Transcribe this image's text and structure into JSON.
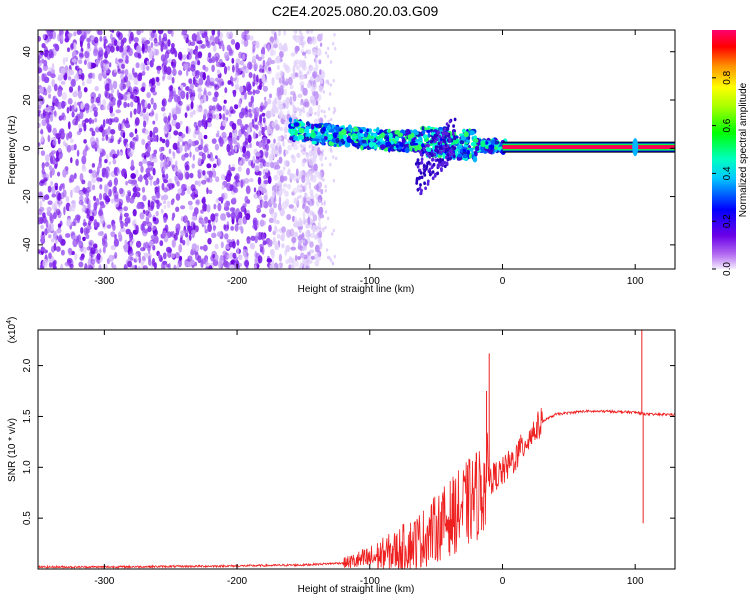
{
  "title": "C2E4.2025.080.20.03.G09",
  "chart_data": [
    {
      "type": "heatmap",
      "xlabel": "Height of straight line (km)",
      "ylabel": "Frequency (Hz)",
      "xlim": [
        -350,
        130
      ],
      "ylim": [
        -50,
        49
      ],
      "xticks": [
        -300,
        -200,
        -100,
        0,
        100
      ],
      "yticks": [
        -40,
        -20,
        0,
        20,
        40
      ],
      "colorbar": {
        "label": "Normalized spectral amplitude",
        "range": [
          0,
          1
        ],
        "ticks": [
          0.0,
          0.2,
          0.4,
          0.6,
          0.8
        ],
        "tick_labels": [
          "0.0",
          "0.2",
          "0.4",
          "0.6",
          "0.8"
        ]
      },
      "features": {
        "noise_region_x": [
          -350,
          -155
        ],
        "noise_amplitude": 0.1,
        "signal_track": [
          {
            "x": -160,
            "f": 8
          },
          {
            "x": -140,
            "f": 6
          },
          {
            "x": -120,
            "f": 5
          },
          {
            "x": -100,
            "f": 4
          },
          {
            "x": -80,
            "f": 3
          },
          {
            "x": -60,
            "f": 3
          },
          {
            "x": -40,
            "f": 2
          },
          {
            "x": -20,
            "f": 1
          },
          {
            "x": 0,
            "f": 1
          }
        ],
        "carrier_line": {
          "x_range": [
            0,
            130
          ],
          "f": 0.5,
          "amplitude": 0.95
        }
      }
    },
    {
      "type": "line",
      "xlabel": "Height of straight line (km)",
      "ylabel": "SNR (10 * v/v)",
      "y_multiplier_label": "(x10",
      "y_multiplier_exp": "4",
      "xlim": [
        -350,
        130
      ],
      "ylim": [
        0,
        2.35
      ],
      "xticks": [
        -300,
        -200,
        -100,
        0,
        100
      ],
      "yticks": [
        0.5,
        1.0,
        1.5,
        2.0
      ],
      "ytick_labels": [
        "0.5",
        "1.0",
        "1.5",
        "2.0"
      ],
      "series": [
        {
          "color": "#ee2020",
          "points": [
            [
              -350,
              0.02
            ],
            [
              -300,
              0.02
            ],
            [
              -250,
              0.025
            ],
            [
              -200,
              0.03
            ],
            [
              -150,
              0.04
            ],
            [
              -120,
              0.06
            ],
            [
              -100,
              0.1
            ],
            [
              -80,
              0.18
            ],
            [
              -60,
              0.3
            ],
            [
              -50,
              0.4
            ],
            [
              -40,
              0.5
            ],
            [
              -30,
              0.6
            ],
            [
              -20,
              0.72
            ],
            [
              -12,
              0.85
            ],
            [
              -5,
              0.92
            ],
            [
              0,
              0.95
            ],
            [
              10,
              1.1
            ],
            [
              20,
              1.3
            ],
            [
              30,
              1.45
            ],
            [
              40,
              1.52
            ],
            [
              60,
              1.55
            ],
            [
              80,
              1.55
            ],
            [
              100,
              1.54
            ],
            [
              110,
              1.52
            ],
            [
              130,
              1.52
            ]
          ],
          "spikes": [
            {
              "x": -10,
              "y": 2.12
            },
            {
              "x": -12,
              "y": 1.75
            },
            {
              "x": 105,
              "y": 2.35
            },
            {
              "x": 106,
              "y": 0.45
            }
          ]
        }
      ]
    }
  ]
}
